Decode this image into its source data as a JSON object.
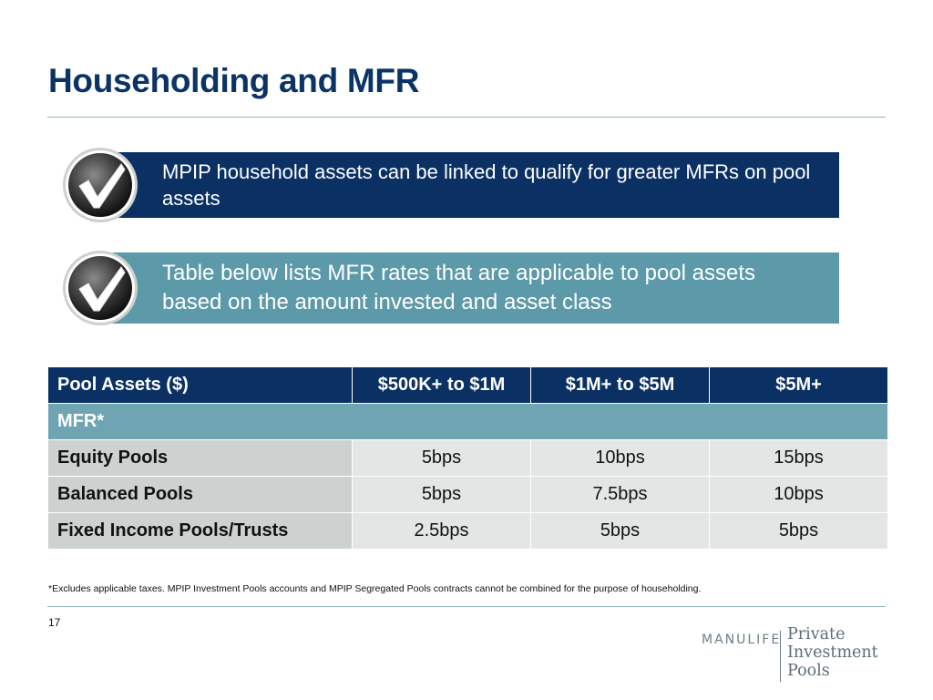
{
  "slide": {
    "title": "Householding and MFR",
    "page_number": "17"
  },
  "callouts": [
    {
      "text": "MPIP household assets can be linked to qualify for greater MFRs on pool assets",
      "icon": "checkmark-icon",
      "color": "#0b3164"
    },
    {
      "text": "Table below lists MFR rates that are applicable to pool assets based on the amount invested and asset class",
      "icon": "checkmark-icon",
      "color": "#5d9aa9"
    }
  ],
  "table": {
    "headers": [
      "Pool Assets  ($)",
      "$500K+ to $1M",
      "$1M+ to $5M",
      "$5M+"
    ],
    "section_label": "MFR*",
    "rows": [
      {
        "label": "Equity Pools",
        "values": [
          "5bps",
          "10bps",
          "15bps"
        ]
      },
      {
        "label": "Balanced  Pools",
        "values": [
          "5bps",
          "7.5bps",
          "10bps"
        ]
      },
      {
        "label": "Fixed Income Pools/Trusts",
        "values": [
          "2.5bps",
          "5bps",
          "5bps"
        ]
      }
    ]
  },
  "footnote": "*Excludes applicable taxes. MPIP Investment Pools accounts and MPIP Segregated Pools contracts cannot be combined for the purpose of householding.",
  "logo": {
    "brand": "MANULIFE",
    "name_lines": [
      "Private",
      "Investment",
      "Pools"
    ]
  }
}
